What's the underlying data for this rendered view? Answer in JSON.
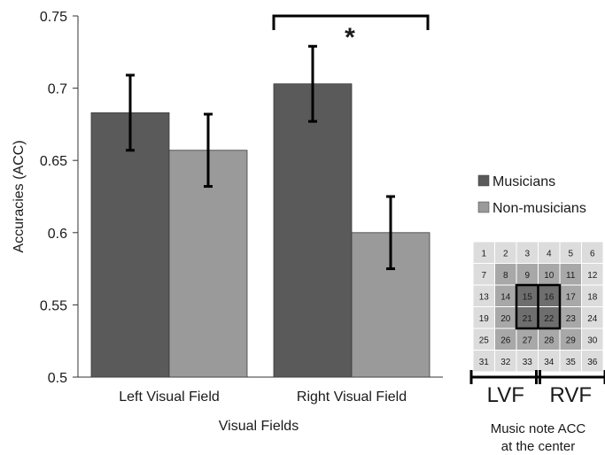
{
  "chart_data": {
    "type": "bar",
    "categories": [
      "Left Visual Field",
      "Right Visual Field"
    ],
    "series": [
      {
        "name": "Musicians",
        "color": "#5a5a5a",
        "values": [
          0.683,
          0.703
        ],
        "errors": [
          0.026,
          0.026
        ]
      },
      {
        "name": "Non-musicians",
        "color": "#9a9a9a",
        "values": [
          0.657,
          0.6
        ],
        "errors": [
          0.025,
          0.025
        ]
      }
    ],
    "xlabel": "Visual Fields",
    "ylabel": "Accuracies (ACC)",
    "ylim": [
      0.5,
      0.75
    ],
    "yticks": [
      "0.5",
      "0.55",
      "0.6",
      "0.65",
      "0.7",
      "0.75"
    ],
    "grid": false,
    "legend_position": "right",
    "significance": {
      "between_category": "Right Visual Field",
      "label": "*"
    }
  },
  "inset": {
    "grid_numbers": [
      [
        1,
        2,
        3,
        4,
        5,
        6
      ],
      [
        7,
        8,
        9,
        10,
        11,
        12
      ],
      [
        13,
        14,
        15,
        16,
        17,
        18
      ],
      [
        19,
        20,
        21,
        22,
        23,
        24
      ],
      [
        25,
        26,
        27,
        28,
        29,
        30
      ],
      [
        31,
        32,
        33,
        34,
        35,
        36
      ]
    ],
    "highlighted_center": [
      15,
      16,
      21,
      22
    ],
    "lvf_label": "LVF",
    "rvf_label": "RVF",
    "caption_line1": "Music note ACC",
    "caption_line2": "at the center"
  }
}
